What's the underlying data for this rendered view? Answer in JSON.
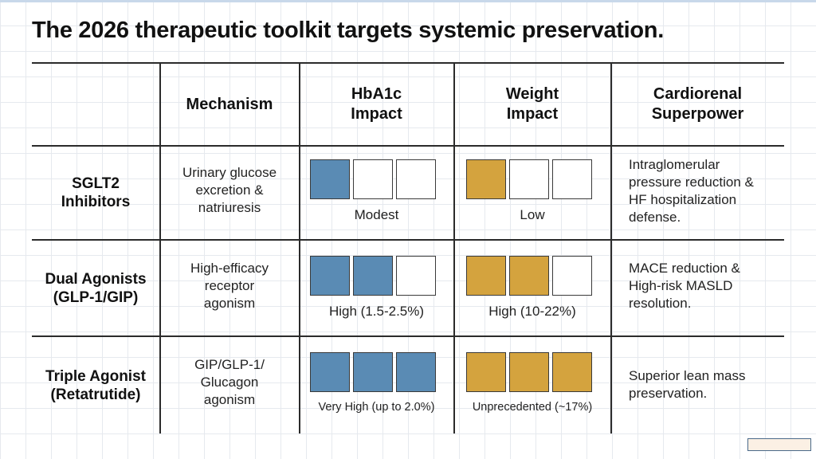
{
  "slide": {
    "title": "The 2026 therapeutic toolkit targets systemic preservation."
  },
  "table": {
    "headers": {
      "mechanism": "Mechanism",
      "hba1c": "HbA1c\nImpact",
      "weight": "Weight\nImpact",
      "cardiorenal": "Cardiorenal\nSuperpower"
    },
    "rows": [
      {
        "drug_class": "SGLT2\nInhibitors",
        "mechanism": "Urinary glucose\nexcretion &\nnatriuresis",
        "hba1c_level": 1,
        "hba1c_label": "Modest",
        "weight_level": 1,
        "weight_label": "Low",
        "cardiorenal": "Intraglomerular\npressure reduction &\nHF hospitalization\ndefense."
      },
      {
        "drug_class": "Dual Agonists\n(GLP-1/GIP)",
        "mechanism": "High-efficacy\nreceptor\nagonism",
        "hba1c_level": 2,
        "hba1c_label": "High (1.5-2.5%)",
        "weight_level": 2,
        "weight_label": "High (10-22%)",
        "cardiorenal": "MACE reduction &\nHigh-risk MASLD\nresolution."
      },
      {
        "drug_class": "Triple Agonist\n(Retatrutide)",
        "mechanism": "GIP/GLP-1/\nGlucagon\nagonism",
        "hba1c_level": 3,
        "hba1c_label": "Very High (up to 2.0%)",
        "weight_level": 3,
        "weight_label": "Unprecedented (~17%)",
        "cardiorenal": "Superior lean mass\npreservation."
      }
    ],
    "meter_max": 3
  },
  "colors": {
    "hba1c_fill": "#5a8bb4",
    "weight_fill": "#d4a33e",
    "empty_fill": "#ffffff",
    "grid_line": "#2b2b2b"
  }
}
